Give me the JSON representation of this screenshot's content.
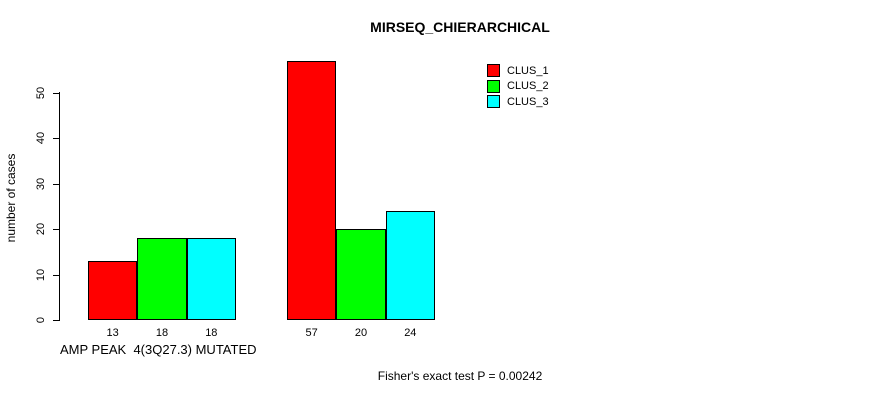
{
  "title": "MIRSEQ_CHIERARCHICAL",
  "y_axis": {
    "label": "number of cases",
    "ticks": [
      0,
      10,
      20,
      30,
      40,
      50
    ]
  },
  "x_axis": {
    "group_label": "AMP PEAK  4(3Q27.3) MUTATED"
  },
  "legend": {
    "items": [
      {
        "label": "CLUS_1",
        "color": "#FF0000"
      },
      {
        "label": "CLUS_2",
        "color": "#00FF00"
      },
      {
        "label": "CLUS_3",
        "color": "#00FFFF"
      }
    ]
  },
  "footer": "Fisher's exact test P = 0.00242",
  "chart_data": {
    "type": "bar",
    "title": "MIRSEQ_CHIERARCHICAL",
    "xlabel": "",
    "ylabel": "number of cases",
    "ylim": [
      0,
      57
    ],
    "yticks": [
      0,
      10,
      20,
      30,
      40,
      50
    ],
    "grid": false,
    "legend_position": "top-right",
    "categories": [
      "AMP PEAK  4(3Q27.3) MUTATED",
      ""
    ],
    "series": [
      {
        "name": "CLUS_1",
        "color": "#FF0000",
        "values": [
          13,
          57
        ]
      },
      {
        "name": "CLUS_2",
        "color": "#00FF00",
        "values": [
          18,
          20
        ]
      },
      {
        "name": "CLUS_3",
        "color": "#00FFFF",
        "values": [
          18,
          24
        ]
      }
    ],
    "bar_value_labels": [
      [
        13,
        18,
        18
      ],
      [
        57,
        20,
        24
      ]
    ],
    "annotation": "Fisher's exact test P = 0.00242"
  }
}
